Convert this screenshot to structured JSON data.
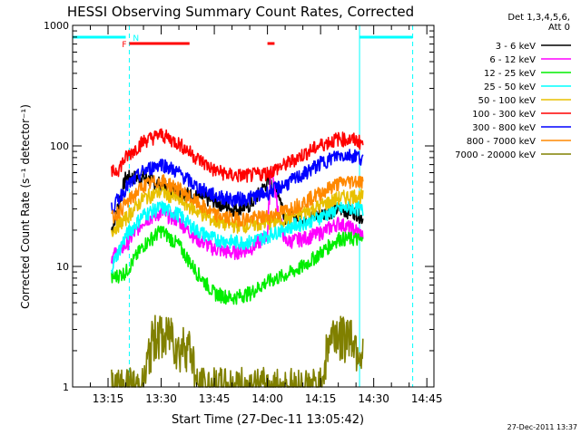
{
  "chart_data": {
    "type": "line",
    "title": "HESSI Observing Summary Count Rates, Corrected",
    "xlabel": "Start Time (27-Dec-11 13:05:42)",
    "ylabel": "Corrected Count Rate (s⁻¹ detector⁻¹)",
    "yscale": "log",
    "ylim": [
      1,
      1000
    ],
    "xlim": [
      "13:05",
      "14:47"
    ],
    "x_ticks": [
      "13:15",
      "13:30",
      "13:45",
      "14:00",
      "14:15",
      "14:30",
      "14:45"
    ],
    "y_ticks": [
      "1",
      "10",
      "100",
      "1000"
    ],
    "timestamp": "27-Dec-2011 13:37",
    "legend": {
      "header": [
        "Det 1,3,4,5,6,",
        "Att 0"
      ],
      "position": "right"
    },
    "series": [
      {
        "name": "3 - 6 keV",
        "color": "#000000",
        "x": [
          "13:16",
          "13:20",
          "13:25",
          "13:30",
          "13:35",
          "13:40",
          "13:45",
          "13:50",
          "13:55",
          "14:00",
          "14:03",
          "14:05",
          "14:10",
          "14:15",
          "14:20",
          "14:25",
          "14:27"
        ],
        "y": [
          20,
          55,
          55,
          48,
          42,
          38,
          35,
          30,
          32,
          50,
          42,
          26,
          25,
          27,
          30,
          28,
          25
        ]
      },
      {
        "name": "6 - 12 keV",
        "color": "#ff00ff",
        "x": [
          "13:16",
          "13:20",
          "13:25",
          "13:30",
          "13:35",
          "13:40",
          "13:45",
          "13:50",
          "13:55",
          "14:00",
          "14:01",
          "14:03",
          "14:05",
          "14:10",
          "14:15",
          "14:20",
          "14:25",
          "14:27"
        ],
        "y": [
          12,
          15,
          24,
          28,
          24,
          17,
          14,
          13,
          14,
          18,
          70,
          30,
          16,
          17,
          19,
          23,
          20,
          18
        ]
      },
      {
        "name": "12 - 25 keV",
        "color": "#00ee00",
        "x": [
          "13:16",
          "13:20",
          "13:25",
          "13:30",
          "13:35",
          "13:40",
          "13:45",
          "13:50",
          "13:55",
          "14:00",
          "14:05",
          "14:10",
          "14:15",
          "14:20",
          "14:25",
          "14:27"
        ],
        "y": [
          8,
          9,
          15,
          20,
          15,
          9,
          6,
          5.5,
          6,
          7.5,
          8.5,
          10,
          13,
          17,
          17,
          16
        ]
      },
      {
        "name": "25 - 50 keV",
        "color": "#00ffff",
        "x": [
          "13:16",
          "13:20",
          "13:25",
          "13:30",
          "13:35",
          "13:40",
          "13:45",
          "13:50",
          "13:55",
          "14:00",
          "14:05",
          "14:10",
          "14:15",
          "14:20",
          "14:25",
          "14:27"
        ],
        "y": [
          10,
          18,
          27,
          31,
          27,
          20,
          17,
          16,
          16,
          18,
          21,
          23,
          26,
          30,
          31,
          29
        ]
      },
      {
        "name": "50 - 100 keV",
        "color": "#e8c000",
        "x": [
          "13:16",
          "13:20",
          "13:25",
          "13:30",
          "13:35",
          "13:40",
          "13:45",
          "13:50",
          "13:55",
          "14:00",
          "14:05",
          "14:10",
          "14:15",
          "14:20",
          "14:25",
          "14:27"
        ],
        "y": [
          20,
          25,
          37,
          42,
          36,
          29,
          24,
          22,
          22,
          23,
          25,
          28,
          32,
          37,
          39,
          38
        ]
      },
      {
        "name": "100 - 300 keV",
        "color": "#ff0000",
        "x": [
          "13:16",
          "13:18",
          "13:20",
          "13:25",
          "13:30",
          "13:35",
          "13:40",
          "13:45",
          "13:50",
          "13:55",
          "14:00",
          "14:05",
          "14:10",
          "14:15",
          "14:20",
          "14:25",
          "14:27"
        ],
        "y": [
          60,
          65,
          80,
          110,
          125,
          105,
          80,
          63,
          57,
          57,
          60,
          70,
          85,
          102,
          115,
          112,
          105
        ]
      },
      {
        "name": "300 - 800 keV",
        "color": "#0000ff",
        "x": [
          "13:16",
          "13:20",
          "13:25",
          "13:30",
          "13:35",
          "13:40",
          "13:45",
          "13:50",
          "13:55",
          "14:00",
          "14:05",
          "14:10",
          "14:15",
          "14:20",
          "14:25",
          "14:27"
        ],
        "y": [
          30,
          45,
          62,
          72,
          60,
          46,
          39,
          36,
          37,
          41,
          48,
          58,
          72,
          84,
          84,
          78
        ]
      },
      {
        "name": "800 - 7000 keV",
        "color": "#ff8800",
        "x": [
          "13:16",
          "13:20",
          "13:25",
          "13:30",
          "13:35",
          "13:40",
          "13:45",
          "13:50",
          "13:55",
          "14:00",
          "14:05",
          "14:10",
          "14:15",
          "14:20",
          "14:25",
          "14:27"
        ],
        "y": [
          25,
          33,
          47,
          52,
          44,
          34,
          27,
          25,
          25,
          26,
          29,
          34,
          41,
          49,
          52,
          50
        ]
      },
      {
        "name": "7000 - 20000 keV",
        "color": "#808000",
        "x": [
          "13:16",
          "13:25",
          "13:27",
          "13:29",
          "13:31",
          "13:33",
          "13:35",
          "13:37",
          "13:39",
          "13:40",
          "14:15",
          "14:17",
          "14:19",
          "14:21",
          "14:23",
          "14:25",
          "14:27"
        ],
        "y": [
          1,
          1,
          2.3,
          3,
          2.5,
          3,
          2,
          2.5,
          1.8,
          1,
          1,
          2.3,
          3,
          2.6,
          3,
          2.3,
          1.8
        ]
      }
    ],
    "intervals": [
      {
        "label": "",
        "color": "#00ffff",
        "start": "13:05",
        "end": "13:20"
      },
      {
        "label": "",
        "color": "#00ffff",
        "start": "14:26",
        "end": "14:41"
      },
      {
        "label": "F",
        "color": "#ff0000",
        "start": "13:21",
        "end": "13:38"
      },
      {
        "label": "",
        "color": "#ff0000",
        "start": "14:00",
        "end": "14:02"
      },
      {
        "label": "N",
        "color": "#00ffff",
        "start": "13:21",
        "end": "13:21"
      }
    ],
    "night_boundaries": [
      "13:21",
      "14:41"
    ],
    "day_boundaries": [
      "13:05",
      "14:26"
    ]
  }
}
